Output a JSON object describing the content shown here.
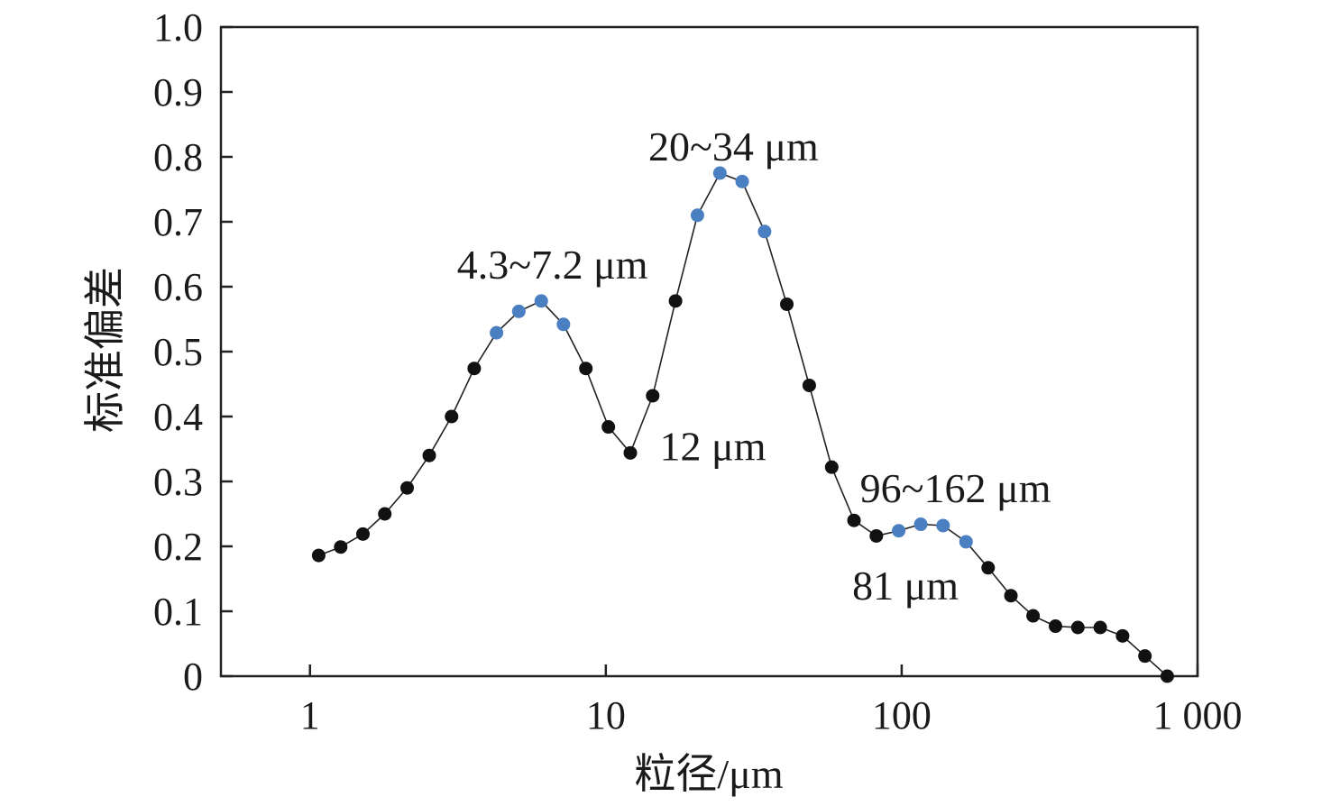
{
  "chart_data": {
    "type": "scatter",
    "xlabel": "粒径/μm",
    "ylabel": "标准偏差",
    "x_scale": "log",
    "xlim": [
      0.5,
      1000
    ],
    "ylim": [
      0,
      1.0
    ],
    "x_ticks": [
      1,
      10,
      100,
      1000
    ],
    "x_tick_labels": [
      "1",
      "10",
      "100",
      "1 000"
    ],
    "y_ticks": [
      0,
      0.1,
      0.2,
      0.3,
      0.4,
      0.5,
      0.6,
      0.7,
      0.8,
      0.9,
      1.0
    ],
    "y_tick_labels": [
      "0",
      "0.1",
      "0.2",
      "0.3",
      "0.4",
      "0.5",
      "0.6",
      "0.7",
      "0.8",
      "0.9",
      "1.0"
    ],
    "grid": false,
    "colors": {
      "default_point": "#111111",
      "highlight_point": "#4a7fc1",
      "line": "#222222",
      "frame": "#222222"
    },
    "points": [
      {
        "x": 1.07,
        "y": 0.186,
        "highlight": false
      },
      {
        "x": 1.27,
        "y": 0.199,
        "highlight": false
      },
      {
        "x": 1.51,
        "y": 0.219,
        "highlight": false
      },
      {
        "x": 1.79,
        "y": 0.25,
        "highlight": false
      },
      {
        "x": 2.13,
        "y": 0.29,
        "highlight": false
      },
      {
        "x": 2.53,
        "y": 0.34,
        "highlight": false
      },
      {
        "x": 3.01,
        "y": 0.4,
        "highlight": false
      },
      {
        "x": 3.59,
        "y": 0.474,
        "highlight": false
      },
      {
        "x": 4.27,
        "y": 0.529,
        "highlight": true
      },
      {
        "x": 5.08,
        "y": 0.562,
        "highlight": true
      },
      {
        "x": 6.05,
        "y": 0.578,
        "highlight": true
      },
      {
        "x": 7.19,
        "y": 0.542,
        "highlight": true
      },
      {
        "x": 8.56,
        "y": 0.474,
        "highlight": false
      },
      {
        "x": 10.2,
        "y": 0.384,
        "highlight": false
      },
      {
        "x": 12.1,
        "y": 0.344,
        "highlight": false
      },
      {
        "x": 14.4,
        "y": 0.432,
        "highlight": false
      },
      {
        "x": 17.2,
        "y": 0.578,
        "highlight": false
      },
      {
        "x": 20.4,
        "y": 0.71,
        "highlight": true
      },
      {
        "x": 24.3,
        "y": 0.775,
        "highlight": true
      },
      {
        "x": 28.9,
        "y": 0.762,
        "highlight": true
      },
      {
        "x": 34.4,
        "y": 0.685,
        "highlight": true
      },
      {
        "x": 40.9,
        "y": 0.573,
        "highlight": false
      },
      {
        "x": 48.7,
        "y": 0.448,
        "highlight": false
      },
      {
        "x": 58.0,
        "y": 0.322,
        "highlight": false
      },
      {
        "x": 69.0,
        "y": 0.24,
        "highlight": false
      },
      {
        "x": 82.1,
        "y": 0.216,
        "highlight": false
      },
      {
        "x": 97.7,
        "y": 0.224,
        "highlight": true
      },
      {
        "x": 116,
        "y": 0.234,
        "highlight": true
      },
      {
        "x": 138,
        "y": 0.232,
        "highlight": true
      },
      {
        "x": 165,
        "y": 0.207,
        "highlight": true
      },
      {
        "x": 196,
        "y": 0.167,
        "highlight": false
      },
      {
        "x": 234,
        "y": 0.124,
        "highlight": false
      },
      {
        "x": 278,
        "y": 0.093,
        "highlight": false
      },
      {
        "x": 331,
        "y": 0.077,
        "highlight": false
      },
      {
        "x": 394,
        "y": 0.075,
        "highlight": false
      },
      {
        "x": 469,
        "y": 0.075,
        "highlight": false
      },
      {
        "x": 558,
        "y": 0.062,
        "highlight": false
      },
      {
        "x": 664,
        "y": 0.031,
        "highlight": false
      },
      {
        "x": 790,
        "y": 0.0,
        "highlight": false
      }
    ],
    "annotations": [
      {
        "text": "4.3~7.2 μm",
        "x": 6.6,
        "y": 0.635
      },
      {
        "text": "20~34 μm",
        "x": 27.0,
        "y": 0.817
      },
      {
        "text": "12 μm",
        "x": 23.0,
        "y": 0.355
      },
      {
        "text": "96~162 μm",
        "x": 152,
        "y": 0.29
      },
      {
        "text": "81 μm",
        "x": 103,
        "y": 0.14
      }
    ]
  }
}
